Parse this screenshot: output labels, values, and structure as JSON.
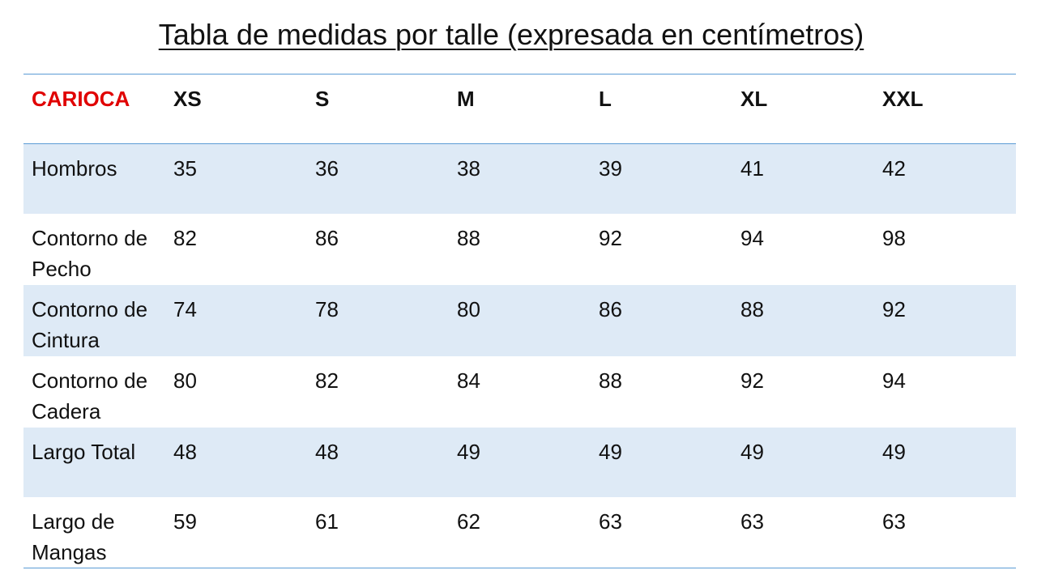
{
  "title": "Tabla de medidas por talle (expresada en centímetros)",
  "colors": {
    "brand": "#e00000",
    "band_fill": "#deeaf6",
    "rule": "#5b9bd5"
  },
  "table": {
    "brand_header": "CARIOCA",
    "sizes": [
      "XS",
      "S",
      "M",
      "L",
      "XL",
      "XXL"
    ],
    "rows": [
      {
        "label": "Hombros",
        "values": [
          "35",
          "36",
          "38",
          "39",
          "41",
          "42"
        ]
      },
      {
        "label": "Contorno de Pecho",
        "values": [
          "82",
          "86",
          "88",
          "92",
          "94",
          "98"
        ]
      },
      {
        "label": "Contorno de Cintura",
        "values": [
          "74",
          "78",
          "80",
          "86",
          "88",
          "92"
        ]
      },
      {
        "label": "Contorno de Cadera",
        "values": [
          "80",
          "82",
          "84",
          "88",
          "92",
          "94"
        ]
      },
      {
        "label": "Largo Total",
        "values": [
          "48",
          "48",
          "49",
          "49",
          "49",
          "49"
        ]
      },
      {
        "label": "Largo de Mangas",
        "values": [
          "59",
          "61",
          "62",
          "63",
          "63",
          "63"
        ]
      }
    ]
  }
}
